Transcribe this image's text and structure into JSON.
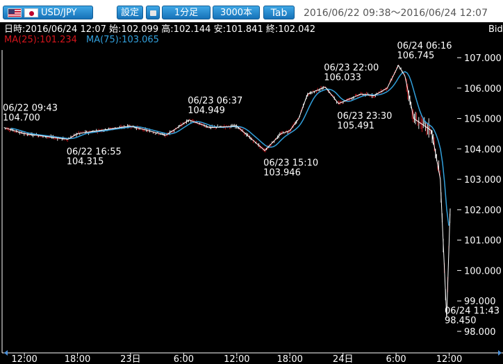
{
  "toolbar": {
    "pair_label": "USD/JPY",
    "flag_left_icon": "us-flag-icon",
    "flag_right_icon": "jp-flag-icon",
    "settings_label": "設定",
    "lock_icon": "lock-icon",
    "interval_label": "1分足",
    "count_label": "3000本",
    "tab_label": "Tab",
    "range_text": "2016/06/22 09:38～2016/06/24 12:07"
  },
  "chart_header": {
    "ohlc_text": "日時:2016/06/24 12:07 始:102.099 高:102.144 安:101.841 終:102.042",
    "ma25_text": "MA(25):101.234",
    "ma75_text": "MA(75):103.065",
    "price_type": "Bid"
  },
  "colors": {
    "background": "#000000",
    "up_candle": "#ffffff",
    "down_candle": "#d6151c",
    "ma25": "#d6151c",
    "ma75": "#32a0dc",
    "toolbar_button": "#1a7fc9"
  },
  "chart_data": {
    "type": "line",
    "series": [
      {
        "name": "",
        "x": [
          "06/22 09:43",
          "06/22 12:00",
          "06/22 16:55",
          "06/22 18:00",
          "06/23 00:00",
          "06/23 04:00",
          "06/23 06:37",
          "06/23 09:00",
          "06/23 12:00",
          "06/23 15:10",
          "06/23 17:00",
          "06/23 18:00",
          "06/23 19:00",
          "06/23 20:00",
          "06/23 22:00",
          "06/23 23:30",
          "06/24 02:00",
          "06/24 03:30",
          "06/24 05:00",
          "06/24 06:16",
          "06/24 07:00",
          "06/24 08:00",
          "06/24 09:00",
          "06/24 10:00",
          "06/24 11:00",
          "06/24 11:43",
          "06/24 12:07"
        ],
        "values": [
          104.7,
          104.5,
          104.315,
          104.5,
          104.75,
          104.45,
          104.949,
          104.7,
          104.75,
          103.946,
          104.5,
          104.6,
          105.0,
          105.8,
          106.033,
          105.491,
          105.8,
          105.75,
          106.0,
          106.745,
          106.4,
          105.0,
          104.8,
          104.6,
          103.0,
          98.45,
          102.042
        ]
      }
    ],
    "annotations": [
      {
        "time": "06/22 09:43",
        "price": "104.700"
      },
      {
        "time": "06/22 16:55",
        "price": "104.315"
      },
      {
        "time": "06/23 06:37",
        "price": "104.949"
      },
      {
        "time": "06/23 15:10",
        "price": "103.946"
      },
      {
        "time": "06/23 22:00",
        "price": "106.033"
      },
      {
        "time": "06/23 23:30",
        "price": "105.491"
      },
      {
        "time": "06/24 06:16",
        "price": "106.745"
      },
      {
        "time": "06/24 11:43",
        "price": "98.450"
      }
    ],
    "y_ticks": [
      "107.000",
      "106.000",
      "105.000",
      "104.000",
      "103.000",
      "102.000",
      "101.000",
      "100.000",
      "99.000",
      "98.000"
    ],
    "x_ticks": [
      "12:00",
      "18:00",
      "23日",
      "6:00",
      "12:00",
      "18:00",
      "24日",
      "6:00",
      "12:00"
    ],
    "ylim": [
      98,
      107
    ]
  }
}
